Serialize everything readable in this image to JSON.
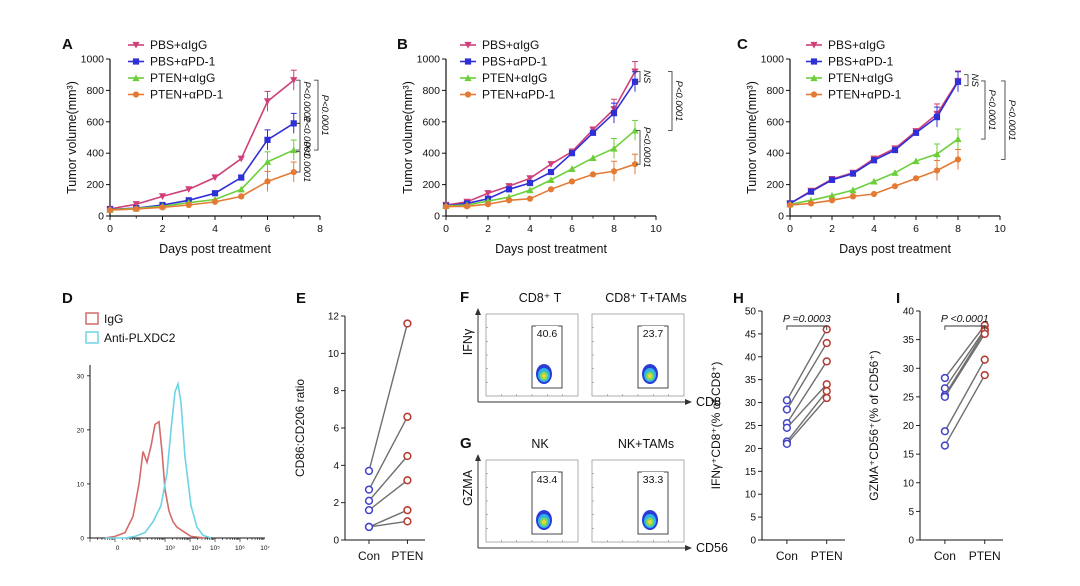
{
  "colors": {
    "pbs_igg": "#cf3f79",
    "pbs_apd1": "#2f2fd8",
    "pten_igg": "#6ccf3a",
    "pten_apd1": "#e47b34",
    "hist_igg": "#d46a6a",
    "hist_plxdc2": "#6fd3e6",
    "con_point": "#4343c9",
    "pten_point": "#b5382c",
    "pair_line": "#6e6e6e"
  },
  "chart_data": [
    {
      "panel": "A",
      "type": "line",
      "xlabel": "Days post treatment",
      "ylabel": "Tumor volume(mm³)",
      "xlim": [
        0,
        8
      ],
      "ylim": [
        0,
        1000
      ],
      "xticks": [
        "0",
        "2",
        "4",
        "6",
        "8"
      ],
      "yticks": [
        "0",
        "200",
        "400",
        "600",
        "800",
        "1000"
      ],
      "legend": [
        "PBS+αIgG",
        "PBS+αPD-1",
        "PTEN+αIgG",
        "PTEN+αPD-1"
      ],
      "series": [
        {
          "name": "PBS+αIgG",
          "x": [
            0,
            1,
            2,
            3,
            4,
            5,
            6,
            7
          ],
          "y": [
            45,
            75,
            125,
            170,
            245,
            365,
            730,
            865
          ]
        },
        {
          "name": "PBS+αPD-1",
          "x": [
            0,
            1,
            2,
            3,
            4,
            5,
            6,
            7
          ],
          "y": [
            42,
            50,
            70,
            100,
            145,
            245,
            485,
            590
          ]
        },
        {
          "name": "PTEN+αIgG",
          "x": [
            0,
            1,
            2,
            3,
            4,
            5,
            6,
            7
          ],
          "y": [
            40,
            48,
            62,
            85,
            105,
            170,
            345,
            420
          ]
        },
        {
          "name": "PTEN+αPD-1",
          "x": [
            0,
            1,
            2,
            3,
            4,
            5,
            6,
            7
          ],
          "y": [
            38,
            45,
            55,
            70,
            90,
            125,
            220,
            280
          ]
        }
      ],
      "stats": [
        "P<0.0001",
        "P<0.0001",
        "P<0.0001",
        "P<0.0001"
      ]
    },
    {
      "panel": "B",
      "type": "line",
      "xlabel": "Days post treatment",
      "ylabel": "Tumor volume(mm³)",
      "xlim": [
        0,
        10
      ],
      "ylim": [
        0,
        1000
      ],
      "xticks": [
        "0",
        "2",
        "4",
        "6",
        "8",
        "10"
      ],
      "yticks": [
        "0",
        "200",
        "400",
        "600",
        "800",
        "1000"
      ],
      "legend": [
        "PBS+αIgG",
        "PBS+αPD-1",
        "PTEN+αIgG",
        "PTEN+αPD-1"
      ],
      "series": [
        {
          "name": "PBS+αIgG",
          "x": [
            0,
            1,
            2,
            3,
            4,
            5,
            6,
            7,
            8,
            9
          ],
          "y": [
            70,
            90,
            145,
            190,
            240,
            330,
            410,
            550,
            680,
            920
          ]
        },
        {
          "name": "PBS+αPD-1",
          "x": [
            0,
            1,
            2,
            3,
            4,
            5,
            6,
            7,
            8,
            9
          ],
          "y": [
            65,
            80,
            110,
            170,
            210,
            280,
            400,
            530,
            655,
            855
          ]
        },
        {
          "name": "PTEN+αIgG",
          "x": [
            0,
            1,
            2,
            3,
            4,
            5,
            6,
            7,
            8,
            9
          ],
          "y": [
            65,
            70,
            95,
            120,
            165,
            230,
            300,
            370,
            430,
            545
          ]
        },
        {
          "name": "PTEN+αPD-1",
          "x": [
            0,
            1,
            2,
            3,
            4,
            5,
            6,
            7,
            8,
            9
          ],
          "y": [
            60,
            62,
            75,
            100,
            110,
            170,
            220,
            265,
            285,
            330
          ]
        }
      ],
      "stats": [
        "NS",
        "P<0.0001",
        "P<0.0001"
      ]
    },
    {
      "panel": "C",
      "type": "line",
      "xlabel": "Days post treatment",
      "ylabel": "Tumor volume(mm³)",
      "xlim": [
        0,
        10
      ],
      "ylim": [
        0,
        1000
      ],
      "xticks": [
        "0",
        "2",
        "4",
        "6",
        "8",
        "10"
      ],
      "yticks": [
        "0",
        "200",
        "400",
        "600",
        "800",
        "1000"
      ],
      "legend": [
        "PBS+αIgG",
        "PBS+αPD-1",
        "PTEN+αIgG",
        "PTEN+αPD-1"
      ],
      "series": [
        {
          "name": "PBS+αIgG",
          "x": [
            0,
            1,
            2,
            3,
            4,
            5,
            6,
            7,
            8
          ],
          "y": [
            80,
            160,
            235,
            275,
            365,
            430,
            540,
            650,
            860
          ]
        },
        {
          "name": "PBS+αPD-1",
          "x": [
            0,
            1,
            2,
            3,
            4,
            5,
            6,
            7,
            8
          ],
          "y": [
            80,
            155,
            230,
            270,
            355,
            420,
            530,
            630,
            855
          ]
        },
        {
          "name": "PTEN+αIgG",
          "x": [
            0,
            1,
            2,
            3,
            4,
            5,
            6,
            7,
            8
          ],
          "y": [
            75,
            100,
            130,
            165,
            220,
            275,
            350,
            395,
            490
          ]
        },
        {
          "name": "PTEN+αPD-1",
          "x": [
            0,
            1,
            2,
            3,
            4,
            5,
            6,
            7,
            8
          ],
          "y": [
            70,
            80,
            100,
            125,
            140,
            190,
            240,
            290,
            360
          ]
        }
      ],
      "stats": [
        "NS",
        "P<0.0001",
        "P<0.0001"
      ]
    },
    {
      "panel": "D",
      "type": "line",
      "legend": [
        "IgG",
        "Anti-PLXDC2"
      ],
      "yticks": [
        "0",
        "10",
        "20",
        "30"
      ],
      "ylim": [
        0,
        32
      ],
      "xtick_exponents": [
        "0",
        "10³",
        "10⁴",
        "10⁵",
        "10⁶",
        "10⁷"
      ],
      "series": [
        {
          "name": "IgG",
          "x": [
            0.0,
            0.5,
            1.0,
            1.4,
            1.7,
            1.9,
            2.1,
            2.3,
            2.5,
            2.7,
            2.85,
            3.0,
            3.2,
            3.4,
            3.6,
            3.8,
            4.0,
            4.3,
            5.0
          ],
          "y": [
            0,
            0.3,
            1,
            4,
            10,
            16,
            14,
            17,
            21,
            21.5,
            16,
            9,
            5,
            3,
            2,
            1.5,
            1,
            0.3,
            0
          ]
        },
        {
          "name": "Anti-PLXDC2",
          "x": [
            0.0,
            1.0,
            1.5,
            2.0,
            2.4,
            2.8,
            3.1,
            3.3,
            3.5,
            3.65,
            3.8,
            4.0,
            4.3,
            4.6,
            4.9,
            5.3
          ],
          "y": [
            0,
            0,
            0.3,
            1,
            3,
            6,
            12,
            20,
            27,
            28.5,
            25,
            15,
            6,
            2,
            0.5,
            0
          ]
        }
      ]
    },
    {
      "panel": "E",
      "type": "scatter",
      "ylabel": "CD86:CD206 ratio",
      "categories": [
        "Con",
        "PTEN"
      ],
      "ylim": [
        0,
        12
      ],
      "yticks": [
        "0",
        "2",
        "4",
        "6",
        "8",
        "10",
        "12"
      ],
      "pairs": [
        [
          3.7,
          11.6
        ],
        [
          2.7,
          6.6
        ],
        [
          2.1,
          4.5
        ],
        [
          1.6,
          3.2
        ],
        [
          0.7,
          1.6
        ],
        [
          0.7,
          1.0
        ]
      ]
    },
    {
      "panel": "H",
      "type": "scatter",
      "ylabel": "IFNγ⁺CD8⁺(% of CD8⁺)",
      "categories": [
        "Con",
        "PTEN"
      ],
      "ylim": [
        0,
        50
      ],
      "yticks": [
        "0",
        "5",
        "10",
        "15",
        "20",
        "25",
        "30",
        "35",
        "40",
        "45",
        "50"
      ],
      "stat": "P =0.0003",
      "pairs": [
        [
          30.5,
          46.0
        ],
        [
          28.5,
          43.0
        ],
        [
          25.5,
          39.0
        ],
        [
          24.5,
          34.0
        ],
        [
          21.5,
          32.5
        ],
        [
          21.0,
          31.0
        ]
      ]
    },
    {
      "panel": "I",
      "type": "scatter",
      "ylabel": "GZMA⁺CD56⁺(% of CD56⁺)",
      "categories": [
        "Con",
        "PTEN"
      ],
      "ylim": [
        0,
        40
      ],
      "yticks": [
        "0",
        "5",
        "10",
        "15",
        "20",
        "25",
        "30",
        "35",
        "40"
      ],
      "stat": "P <0.0001",
      "pairs": [
        [
          28.3,
          37.5
        ],
        [
          26.5,
          36.8
        ],
        [
          25.3,
          36.5
        ],
        [
          25.0,
          36.0
        ],
        [
          19.0,
          31.5
        ],
        [
          16.5,
          28.8
        ]
      ]
    }
  ],
  "panel_labels": [
    "A",
    "B",
    "C",
    "D",
    "E",
    "F",
    "G",
    "H",
    "I"
  ],
  "flow": {
    "F": {
      "ylabel": "IFNγ",
      "xlabel": "CD8",
      "plots": [
        {
          "title": "CD8⁺ T",
          "value": "40.6"
        },
        {
          "title": "CD8⁺ T+TAMs",
          "value": "23.7"
        }
      ]
    },
    "G": {
      "ylabel": "GZMA",
      "xlabel": "CD56",
      "plots": [
        {
          "title": "NK",
          "value": "43.4"
        },
        {
          "title": "NK+TAMs",
          "value": "33.3"
        }
      ]
    }
  }
}
